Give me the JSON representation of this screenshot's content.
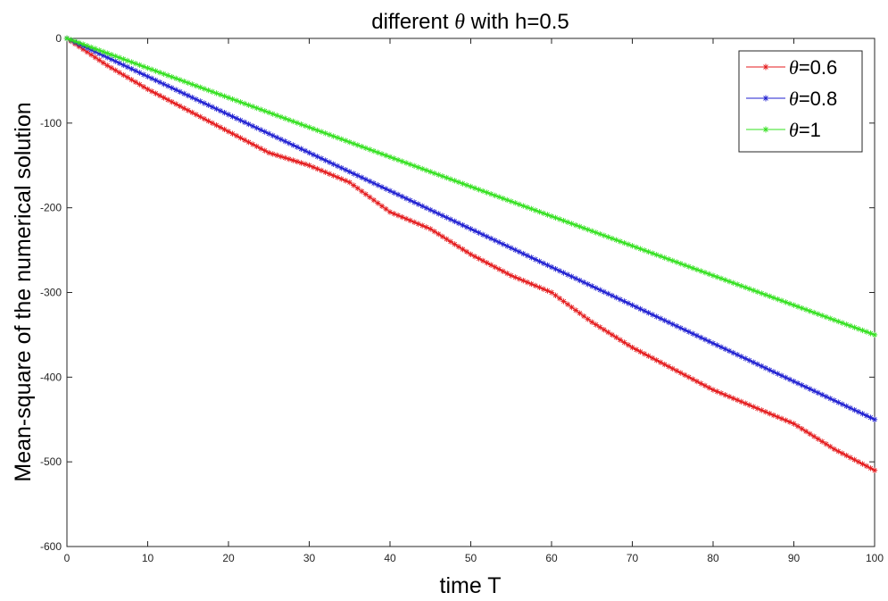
{
  "chart_data": {
    "type": "line",
    "title_prefix": "different ",
    "title_symbol": "θ",
    "title_suffix": " with h=0.5",
    "xlabel": "time T",
    "ylabel": "Mean-square of the numerical solution",
    "xlim": [
      0,
      100
    ],
    "ylim": [
      -600,
      0
    ],
    "xticks": [
      "0",
      "10",
      "20",
      "30",
      "40",
      "50",
      "60",
      "70",
      "80",
      "90",
      "100"
    ],
    "yticks": [
      "0",
      "-100",
      "-200",
      "-300",
      "-400",
      "-500",
      "-600"
    ],
    "grid": false,
    "legend_position": "top-right",
    "marker": "asterisk",
    "series": [
      {
        "name": "=0.6",
        "symbol": "θ",
        "color": "#e41a1c",
        "x": [
          0,
          5,
          10,
          15,
          20,
          25,
          30,
          35,
          40,
          45,
          50,
          55,
          60,
          65,
          70,
          75,
          80,
          85,
          90,
          95,
          100
        ],
        "y": [
          0,
          -32,
          -60,
          -85,
          -110,
          -135,
          -150,
          -170,
          -205,
          -225,
          -255,
          -280,
          -300,
          -335,
          -365,
          -390,
          -415,
          -435,
          -455,
          -485,
          -510
        ]
      },
      {
        "name": "=0.8",
        "symbol": "θ",
        "color": "#1f1fd1",
        "x": [
          0,
          10,
          20,
          30,
          40,
          50,
          60,
          70,
          80,
          90,
          100
        ],
        "y": [
          0,
          -45,
          -90,
          -135,
          -180,
          -225,
          -270,
          -315,
          -360,
          -405,
          -450
        ]
      },
      {
        "name": "=1",
        "symbol": "θ",
        "color": "#33e01f",
        "x": [
          0,
          10,
          20,
          30,
          40,
          50,
          60,
          70,
          80,
          90,
          100
        ],
        "y": [
          0,
          -35,
          -70,
          -105,
          -140,
          -175,
          -210,
          -245,
          -280,
          -315,
          -350
        ]
      }
    ]
  }
}
